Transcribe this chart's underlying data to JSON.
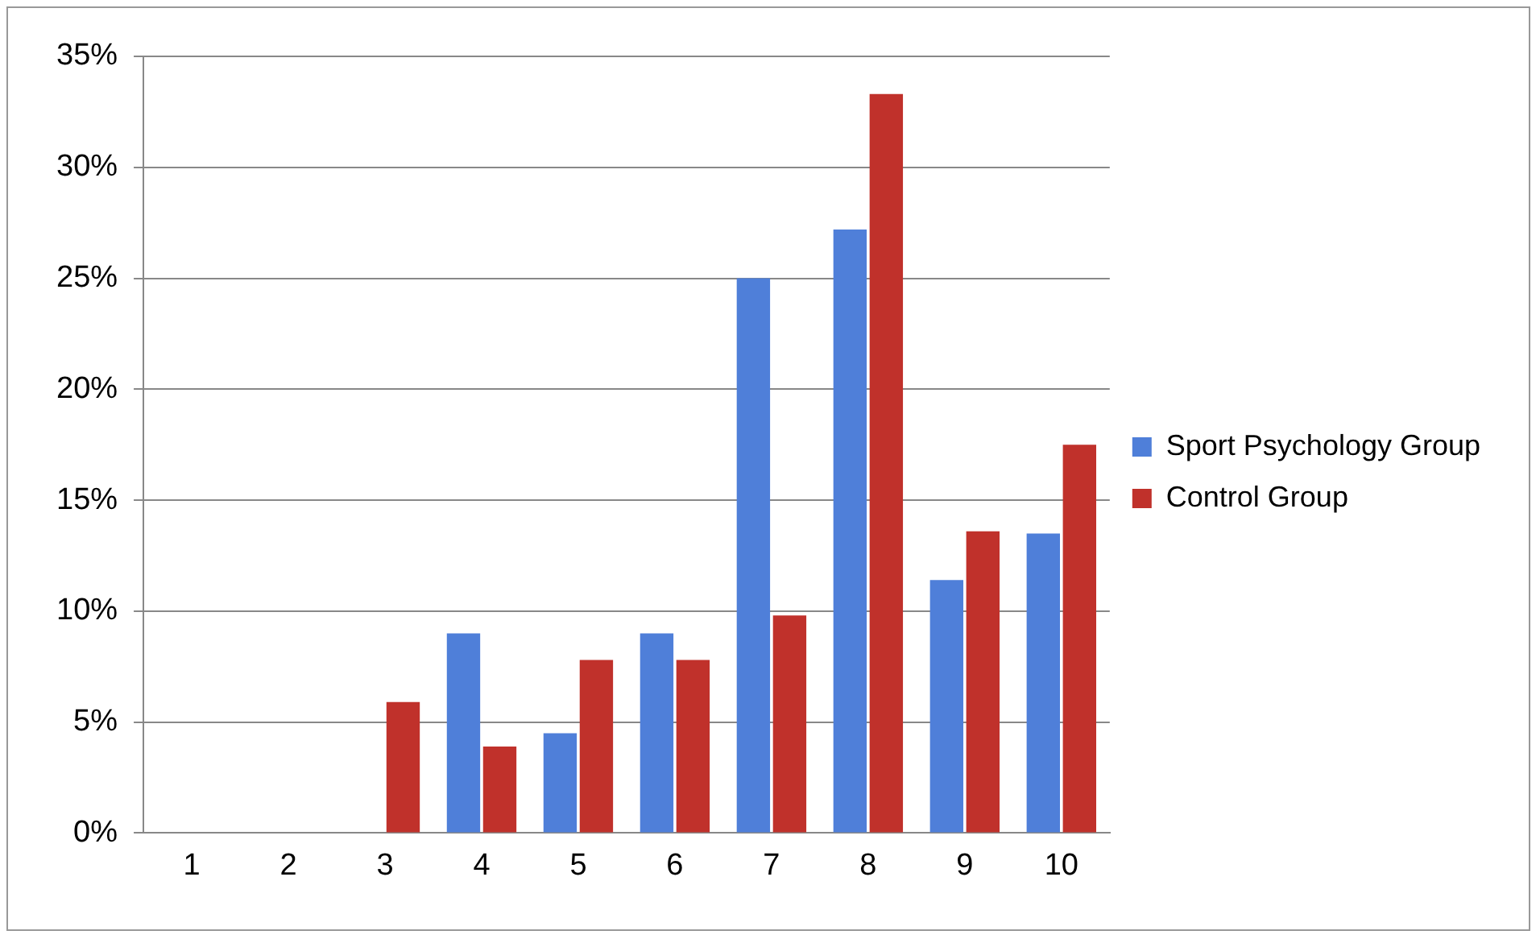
{
  "chart_data": {
    "type": "bar",
    "categories": [
      "1",
      "2",
      "3",
      "4",
      "5",
      "6",
      "7",
      "8",
      "9",
      "10"
    ],
    "series": [
      {
        "name": "Sport Psychology Group",
        "color": "#4f7fd9",
        "values": [
          0,
          0,
          0,
          9.0,
          4.5,
          9.0,
          25.0,
          27.2,
          11.4,
          13.5
        ]
      },
      {
        "name": "Control Group",
        "color": "#c0312b",
        "values": [
          0,
          0,
          5.9,
          3.9,
          7.8,
          7.8,
          9.8,
          33.3,
          13.6,
          17.5
        ]
      }
    ],
    "ylim": [
      0,
      35
    ],
    "yticks": [
      {
        "value": 0,
        "label": "0%"
      },
      {
        "value": 5,
        "label": "5%"
      },
      {
        "value": 10,
        "label": "10%"
      },
      {
        "value": 15,
        "label": "15%"
      },
      {
        "value": 20,
        "label": "20%"
      },
      {
        "value": 25,
        "label": "25%"
      },
      {
        "value": 30,
        "label": "30%"
      },
      {
        "value": 35,
        "label": "35%"
      }
    ],
    "grid": "y",
    "legend": "right"
  }
}
